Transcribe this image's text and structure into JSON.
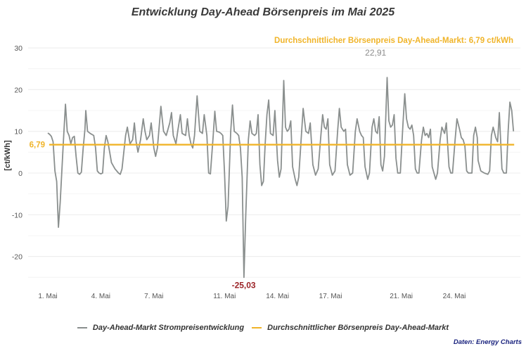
{
  "chart_data": {
    "type": "line",
    "title": "Entwicklung Day-Ahead Börsenpreis im Mai 2025",
    "ylabel": "[ct/kWh]",
    "xlabel": "",
    "ylim": [
      -27,
      32
    ],
    "xlim": [
      0.5,
      28
    ],
    "yticks": [
      30,
      20,
      10,
      0,
      -10,
      -20
    ],
    "ytick_labels": [
      "30",
      "20",
      "10",
      "0",
      "-10",
      "-20"
    ],
    "xticks": [
      1,
      4,
      7,
      11,
      14,
      17,
      21,
      24
    ],
    "xtick_labels": [
      "1. Mai",
      "4. Mai",
      "7. Mai",
      "11. Mai",
      "14. Mai",
      "17. Mai",
      "21. Mai",
      "24. Mai"
    ],
    "grid": true,
    "legend_position": "bottom",
    "average": {
      "value": 6.79,
      "label": "6,79",
      "note": "Durchschnittlicher Börsenpreis Day-Ahead-Markt: 6,79 ct/kWh"
    },
    "annotations": {
      "max": {
        "x": 19.55,
        "y": 22.91,
        "label": "22,91"
      },
      "min": {
        "x": 11.45,
        "y": -25.03,
        "label": "-25,03"
      }
    },
    "series": [
      {
        "name": "Day-Ahead-Markt Strompreisentwicklung",
        "color": "#8a8f8e",
        "points": [
          [
            1.0,
            9.6
          ],
          [
            1.1,
            9.3
          ],
          [
            1.2,
            8.8
          ],
          [
            1.3,
            7.5
          ],
          [
            1.4,
            0.5
          ],
          [
            1.5,
            -2.0
          ],
          [
            1.6,
            -13.0
          ],
          [
            1.7,
            -7.0
          ],
          [
            1.8,
            1.0
          ],
          [
            1.9,
            9.0
          ],
          [
            2.0,
            16.5
          ],
          [
            2.1,
            10.0
          ],
          [
            2.2,
            9.0
          ],
          [
            2.3,
            7.0
          ],
          [
            2.4,
            8.5
          ],
          [
            2.5,
            8.8
          ],
          [
            2.6,
            4.0
          ],
          [
            2.7,
            0.0
          ],
          [
            2.8,
            -0.3
          ],
          [
            2.9,
            0.2
          ],
          [
            3.0,
            6.0
          ],
          [
            3.1,
            10.5
          ],
          [
            3.15,
            15.0
          ],
          [
            3.25,
            10.0
          ],
          [
            3.4,
            9.5
          ],
          [
            3.6,
            9.0
          ],
          [
            3.7,
            6.0
          ],
          [
            3.8,
            0.5
          ],
          [
            3.9,
            0.0
          ],
          [
            4.0,
            -0.2
          ],
          [
            4.1,
            0.0
          ],
          [
            4.2,
            6.0
          ],
          [
            4.3,
            9.0
          ],
          [
            4.4,
            7.5
          ],
          [
            4.5,
            5.0
          ],
          [
            4.6,
            2.5
          ],
          [
            4.8,
            1.0
          ],
          [
            5.0,
            0.0
          ],
          [
            5.1,
            -0.3
          ],
          [
            5.2,
            1.0
          ],
          [
            5.4,
            9.0
          ],
          [
            5.5,
            11.0
          ],
          [
            5.65,
            7.0
          ],
          [
            5.8,
            8.0
          ],
          [
            5.9,
            12.0
          ],
          [
            6.0,
            7.5
          ],
          [
            6.1,
            5.0
          ],
          [
            6.25,
            8.0
          ],
          [
            6.4,
            13.0
          ],
          [
            6.5,
            10.0
          ],
          [
            6.6,
            8.0
          ],
          [
            6.75,
            9.0
          ],
          [
            6.85,
            12.0
          ],
          [
            7.0,
            6.0
          ],
          [
            7.1,
            4.0
          ],
          [
            7.2,
            6.0
          ],
          [
            7.4,
            16.0
          ],
          [
            7.55,
            10.0
          ],
          [
            7.7,
            9.0
          ],
          [
            7.9,
            12.0
          ],
          [
            8.0,
            14.5
          ],
          [
            8.1,
            9.0
          ],
          [
            8.25,
            7.0
          ],
          [
            8.35,
            10.0
          ],
          [
            8.5,
            14.0
          ],
          [
            8.6,
            9.5
          ],
          [
            8.8,
            9.0
          ],
          [
            8.9,
            13.0
          ],
          [
            9.0,
            9.0
          ],
          [
            9.1,
            7.0
          ],
          [
            9.2,
            6.0
          ],
          [
            9.3,
            9.0
          ],
          [
            9.45,
            18.5
          ],
          [
            9.6,
            10.0
          ],
          [
            9.75,
            9.5
          ],
          [
            9.85,
            14.0
          ],
          [
            10.0,
            9.0
          ],
          [
            10.1,
            0.0
          ],
          [
            10.2,
            -0.2
          ],
          [
            10.35,
            8.5
          ],
          [
            10.45,
            14.8
          ],
          [
            10.55,
            10.0
          ],
          [
            10.7,
            9.8
          ],
          [
            10.8,
            9.5
          ],
          [
            10.9,
            9.0
          ],
          [
            11.0,
            0.0
          ],
          [
            11.1,
            -11.5
          ],
          [
            11.2,
            -8.0
          ],
          [
            11.35,
            10.0
          ],
          [
            11.45,
            16.3
          ],
          [
            11.55,
            10.0
          ],
          [
            11.7,
            9.5
          ],
          [
            11.8,
            9.0
          ],
          [
            11.9,
            6.0
          ],
          [
            12.0,
            -1.0
          ],
          [
            12.1,
            -25.03
          ],
          [
            12.2,
            -10.0
          ],
          [
            12.35,
            8.0
          ],
          [
            12.45,
            12.5
          ],
          [
            12.55,
            9.5
          ],
          [
            12.7,
            9.0
          ],
          [
            12.8,
            9.5
          ],
          [
            12.9,
            14.0
          ],
          [
            13.0,
            2.0
          ],
          [
            13.1,
            -3.0
          ],
          [
            13.2,
            -2.0
          ],
          [
            13.3,
            7.0
          ],
          [
            13.4,
            14.0
          ],
          [
            13.5,
            17.5
          ],
          [
            13.6,
            9.5
          ],
          [
            13.75,
            9.0
          ],
          [
            13.85,
            15.0
          ],
          [
            14.0,
            3.0
          ],
          [
            14.1,
            -1.0
          ],
          [
            14.2,
            1.0
          ],
          [
            14.35,
            22.2
          ],
          [
            14.45,
            11.0
          ],
          [
            14.55,
            10.0
          ],
          [
            14.65,
            10.5
          ],
          [
            14.75,
            12.5
          ],
          [
            14.85,
            1.5
          ],
          [
            15.0,
            -1.5
          ],
          [
            15.1,
            -3.0
          ],
          [
            15.2,
            -1.0
          ],
          [
            15.35,
            9.0
          ],
          [
            15.45,
            15.5
          ],
          [
            15.6,
            10.0
          ],
          [
            15.75,
            9.5
          ],
          [
            15.85,
            12.0
          ],
          [
            16.0,
            2.0
          ],
          [
            16.15,
            -0.5
          ],
          [
            16.3,
            1.0
          ],
          [
            16.45,
            9.0
          ],
          [
            16.55,
            14.0
          ],
          [
            16.65,
            11.0
          ],
          [
            16.75,
            10.5
          ],
          [
            16.85,
            13.0
          ],
          [
            16.95,
            2.0
          ],
          [
            17.1,
            -0.5
          ],
          [
            17.25,
            0.5
          ],
          [
            17.4,
            10.0
          ],
          [
            17.5,
            15.5
          ],
          [
            17.6,
            11.0
          ],
          [
            17.75,
            10.0
          ],
          [
            17.85,
            10.5
          ],
          [
            17.95,
            2.0
          ],
          [
            18.1,
            -0.5
          ],
          [
            18.25,
            0.0
          ],
          [
            18.4,
            10.0
          ],
          [
            18.5,
            13.0
          ],
          [
            18.65,
            10.0
          ],
          [
            18.75,
            9.0
          ],
          [
            18.85,
            8.5
          ],
          [
            18.95,
            1.5
          ],
          [
            19.1,
            -1.5
          ],
          [
            19.2,
            0.0
          ],
          [
            19.35,
            11.0
          ],
          [
            19.45,
            13.0
          ],
          [
            19.55,
            10.0
          ],
          [
            19.65,
            9.5
          ],
          [
            19.75,
            13.5
          ],
          [
            19.85,
            2.0
          ],
          [
            19.95,
            0.5
          ],
          [
            20.05,
            4.0
          ],
          [
            20.2,
            22.91
          ],
          [
            20.3,
            12.5
          ],
          [
            20.4,
            11.0
          ],
          [
            20.5,
            11.5
          ],
          [
            20.6,
            14.0
          ],
          [
            20.7,
            3.5
          ],
          [
            20.8,
            0.0
          ],
          [
            20.95,
            0.0
          ],
          [
            21.1,
            12.0
          ],
          [
            21.2,
            19.0
          ],
          [
            21.3,
            13.0
          ],
          [
            21.4,
            11.0
          ],
          [
            21.5,
            10.5
          ],
          [
            21.6,
            11.5
          ],
          [
            21.7,
            9.0
          ],
          [
            21.8,
            1.0
          ],
          [
            21.9,
            0.0
          ],
          [
            22.0,
            0.0
          ],
          [
            22.15,
            8.0
          ],
          [
            22.25,
            11.0
          ],
          [
            22.35,
            9.0
          ],
          [
            22.45,
            9.5
          ],
          [
            22.55,
            8.5
          ],
          [
            22.65,
            10.5
          ],
          [
            22.75,
            1.5
          ],
          [
            22.85,
            0.0
          ],
          [
            22.95,
            -1.5
          ],
          [
            23.05,
            0.0
          ],
          [
            23.2,
            8.0
          ],
          [
            23.3,
            11.0
          ],
          [
            23.45,
            9.5
          ],
          [
            23.55,
            12.0
          ],
          [
            23.7,
            1.5
          ],
          [
            23.8,
            0.0
          ],
          [
            23.9,
            0.0
          ],
          [
            24.05,
            8.0
          ],
          [
            24.15,
            13.0
          ],
          [
            24.3,
            10.5
          ],
          [
            24.4,
            8.5
          ],
          [
            24.5,
            8.0
          ],
          [
            24.6,
            6.5
          ],
          [
            24.7,
            0.5
          ],
          [
            24.8,
            0.0
          ],
          [
            25.0,
            0.0
          ],
          [
            25.1,
            9.0
          ],
          [
            25.2,
            11.0
          ],
          [
            25.3,
            8.5
          ],
          [
            25.35,
            3.0
          ],
          [
            25.5,
            0.5
          ],
          [
            25.7,
            0.0
          ],
          [
            25.9,
            -0.3
          ],
          [
            26.0,
            0.5
          ],
          [
            26.1,
            9.0
          ],
          [
            26.2,
            11.0
          ],
          [
            26.35,
            8.5
          ],
          [
            26.45,
            7.5
          ],
          [
            26.55,
            14.5
          ],
          [
            26.7,
            1.0
          ],
          [
            26.8,
            0.0
          ],
          [
            26.95,
            0.0
          ],
          [
            27.05,
            10.0
          ],
          [
            27.15,
            17.0
          ],
          [
            27.25,
            15.0
          ],
          [
            27.35,
            10.0
          ]
        ]
      },
      {
        "name": "Durchschnittlicher Börsenpreis Day-Ahead-Markt",
        "color": "#f0b429",
        "constant": 6.79
      }
    ],
    "source": "Daten: Energy Charts"
  }
}
